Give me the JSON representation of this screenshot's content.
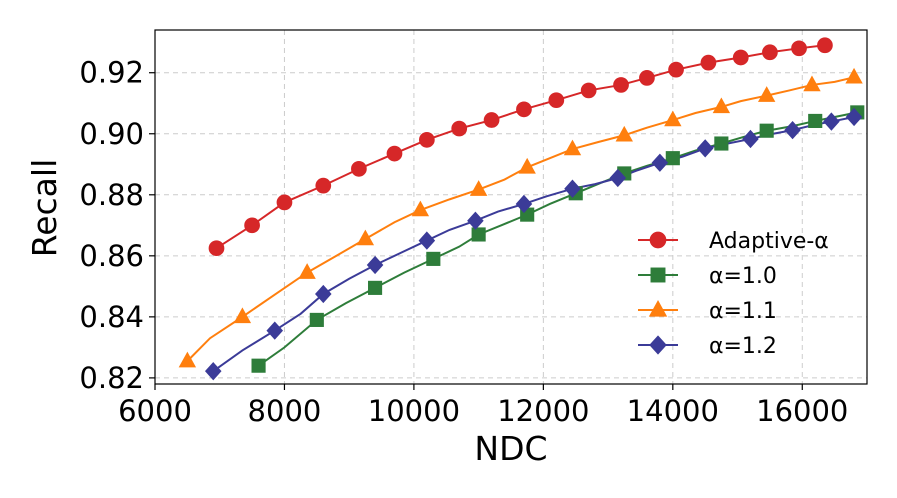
{
  "chart_data": {
    "type": "line",
    "xlabel": "NDC",
    "ylabel": "Recall",
    "xlim": [
      6000,
      17000
    ],
    "ylim": [
      0.818,
      0.934
    ],
    "xticks": [
      6000,
      8000,
      10000,
      12000,
      14000,
      16000
    ],
    "yticks": [
      0.82,
      0.84,
      0.86,
      0.88,
      0.9,
      0.92
    ],
    "grid": true,
    "legend_position": "lower-right",
    "series": [
      {
        "name": "Adaptive-α",
        "color": "#d62728",
        "marker": "circle",
        "x": [
          6950,
          7500,
          8000,
          8600,
          9150,
          9700,
          10200,
          10700,
          11200,
          11700,
          12200,
          12700,
          13200,
          13600,
          14050,
          14550,
          15050,
          15500,
          15950,
          16350
        ],
        "y": [
          0.8625,
          0.87,
          0.8775,
          0.883,
          0.8885,
          0.8935,
          0.898,
          0.9017,
          0.9045,
          0.908,
          0.911,
          0.9142,
          0.916,
          0.9183,
          0.921,
          0.9233,
          0.925,
          0.9267,
          0.928,
          0.929
        ]
      },
      {
        "name": "α=1.0",
        "color": "#2e7d3a",
        "marker": "square",
        "x": [
          7600,
          8000,
          8500,
          8950,
          9400,
          9850,
          10300,
          10700,
          11000,
          11350,
          11750,
          12100,
          12500,
          12900,
          13250,
          13600,
          14000,
          14350,
          14750,
          15100,
          15450,
          15850,
          16200,
          16500,
          16850
        ],
        "y": [
          0.824,
          0.83,
          0.839,
          0.8445,
          0.8495,
          0.8545,
          0.859,
          0.863,
          0.867,
          0.87,
          0.8735,
          0.877,
          0.8805,
          0.884,
          0.887,
          0.8895,
          0.892,
          0.8945,
          0.8968,
          0.899,
          0.901,
          0.9025,
          0.9042,
          0.9055,
          0.907
        ]
      },
      {
        "name": "α=1.1",
        "color": "#ff7f0e",
        "marker": "triangle",
        "x": [
          6500,
          6850,
          7350,
          7900,
          8350,
          8800,
          9250,
          9700,
          10100,
          10550,
          11000,
          11400,
          11750,
          12100,
          12450,
          12850,
          13250,
          13600,
          14000,
          14350,
          14750,
          15050,
          15450,
          15800,
          16150,
          16500,
          16800
        ],
        "y": [
          0.8255,
          0.833,
          0.84,
          0.848,
          0.8545,
          0.86,
          0.8655,
          0.871,
          0.875,
          0.8785,
          0.8817,
          0.885,
          0.889,
          0.892,
          0.895,
          0.8973,
          0.8995,
          0.902,
          0.9045,
          0.9068,
          0.9088,
          0.9107,
          0.9125,
          0.9142,
          0.916,
          0.917,
          0.9185
        ]
      },
      {
        "name": "α=1.2",
        "color": "#3b3b98",
        "marker": "diamond",
        "x": [
          6900,
          7350,
          7850,
          8250,
          8600,
          9000,
          9400,
          9800,
          10200,
          10550,
          10950,
          11300,
          11700,
          12050,
          12450,
          12800,
          13150,
          13450,
          13800,
          14150,
          14500,
          14850,
          15200,
          15500,
          15850,
          16200,
          16450,
          16800
        ],
        "y": [
          0.8222,
          0.829,
          0.8355,
          0.841,
          0.8475,
          0.8525,
          0.857,
          0.861,
          0.865,
          0.8685,
          0.8715,
          0.8745,
          0.877,
          0.8795,
          0.882,
          0.8835,
          0.8855,
          0.888,
          0.8905,
          0.8925,
          0.8952,
          0.8968,
          0.8983,
          0.8998,
          0.9012,
          0.903,
          0.904,
          0.9055
        ]
      }
    ]
  }
}
